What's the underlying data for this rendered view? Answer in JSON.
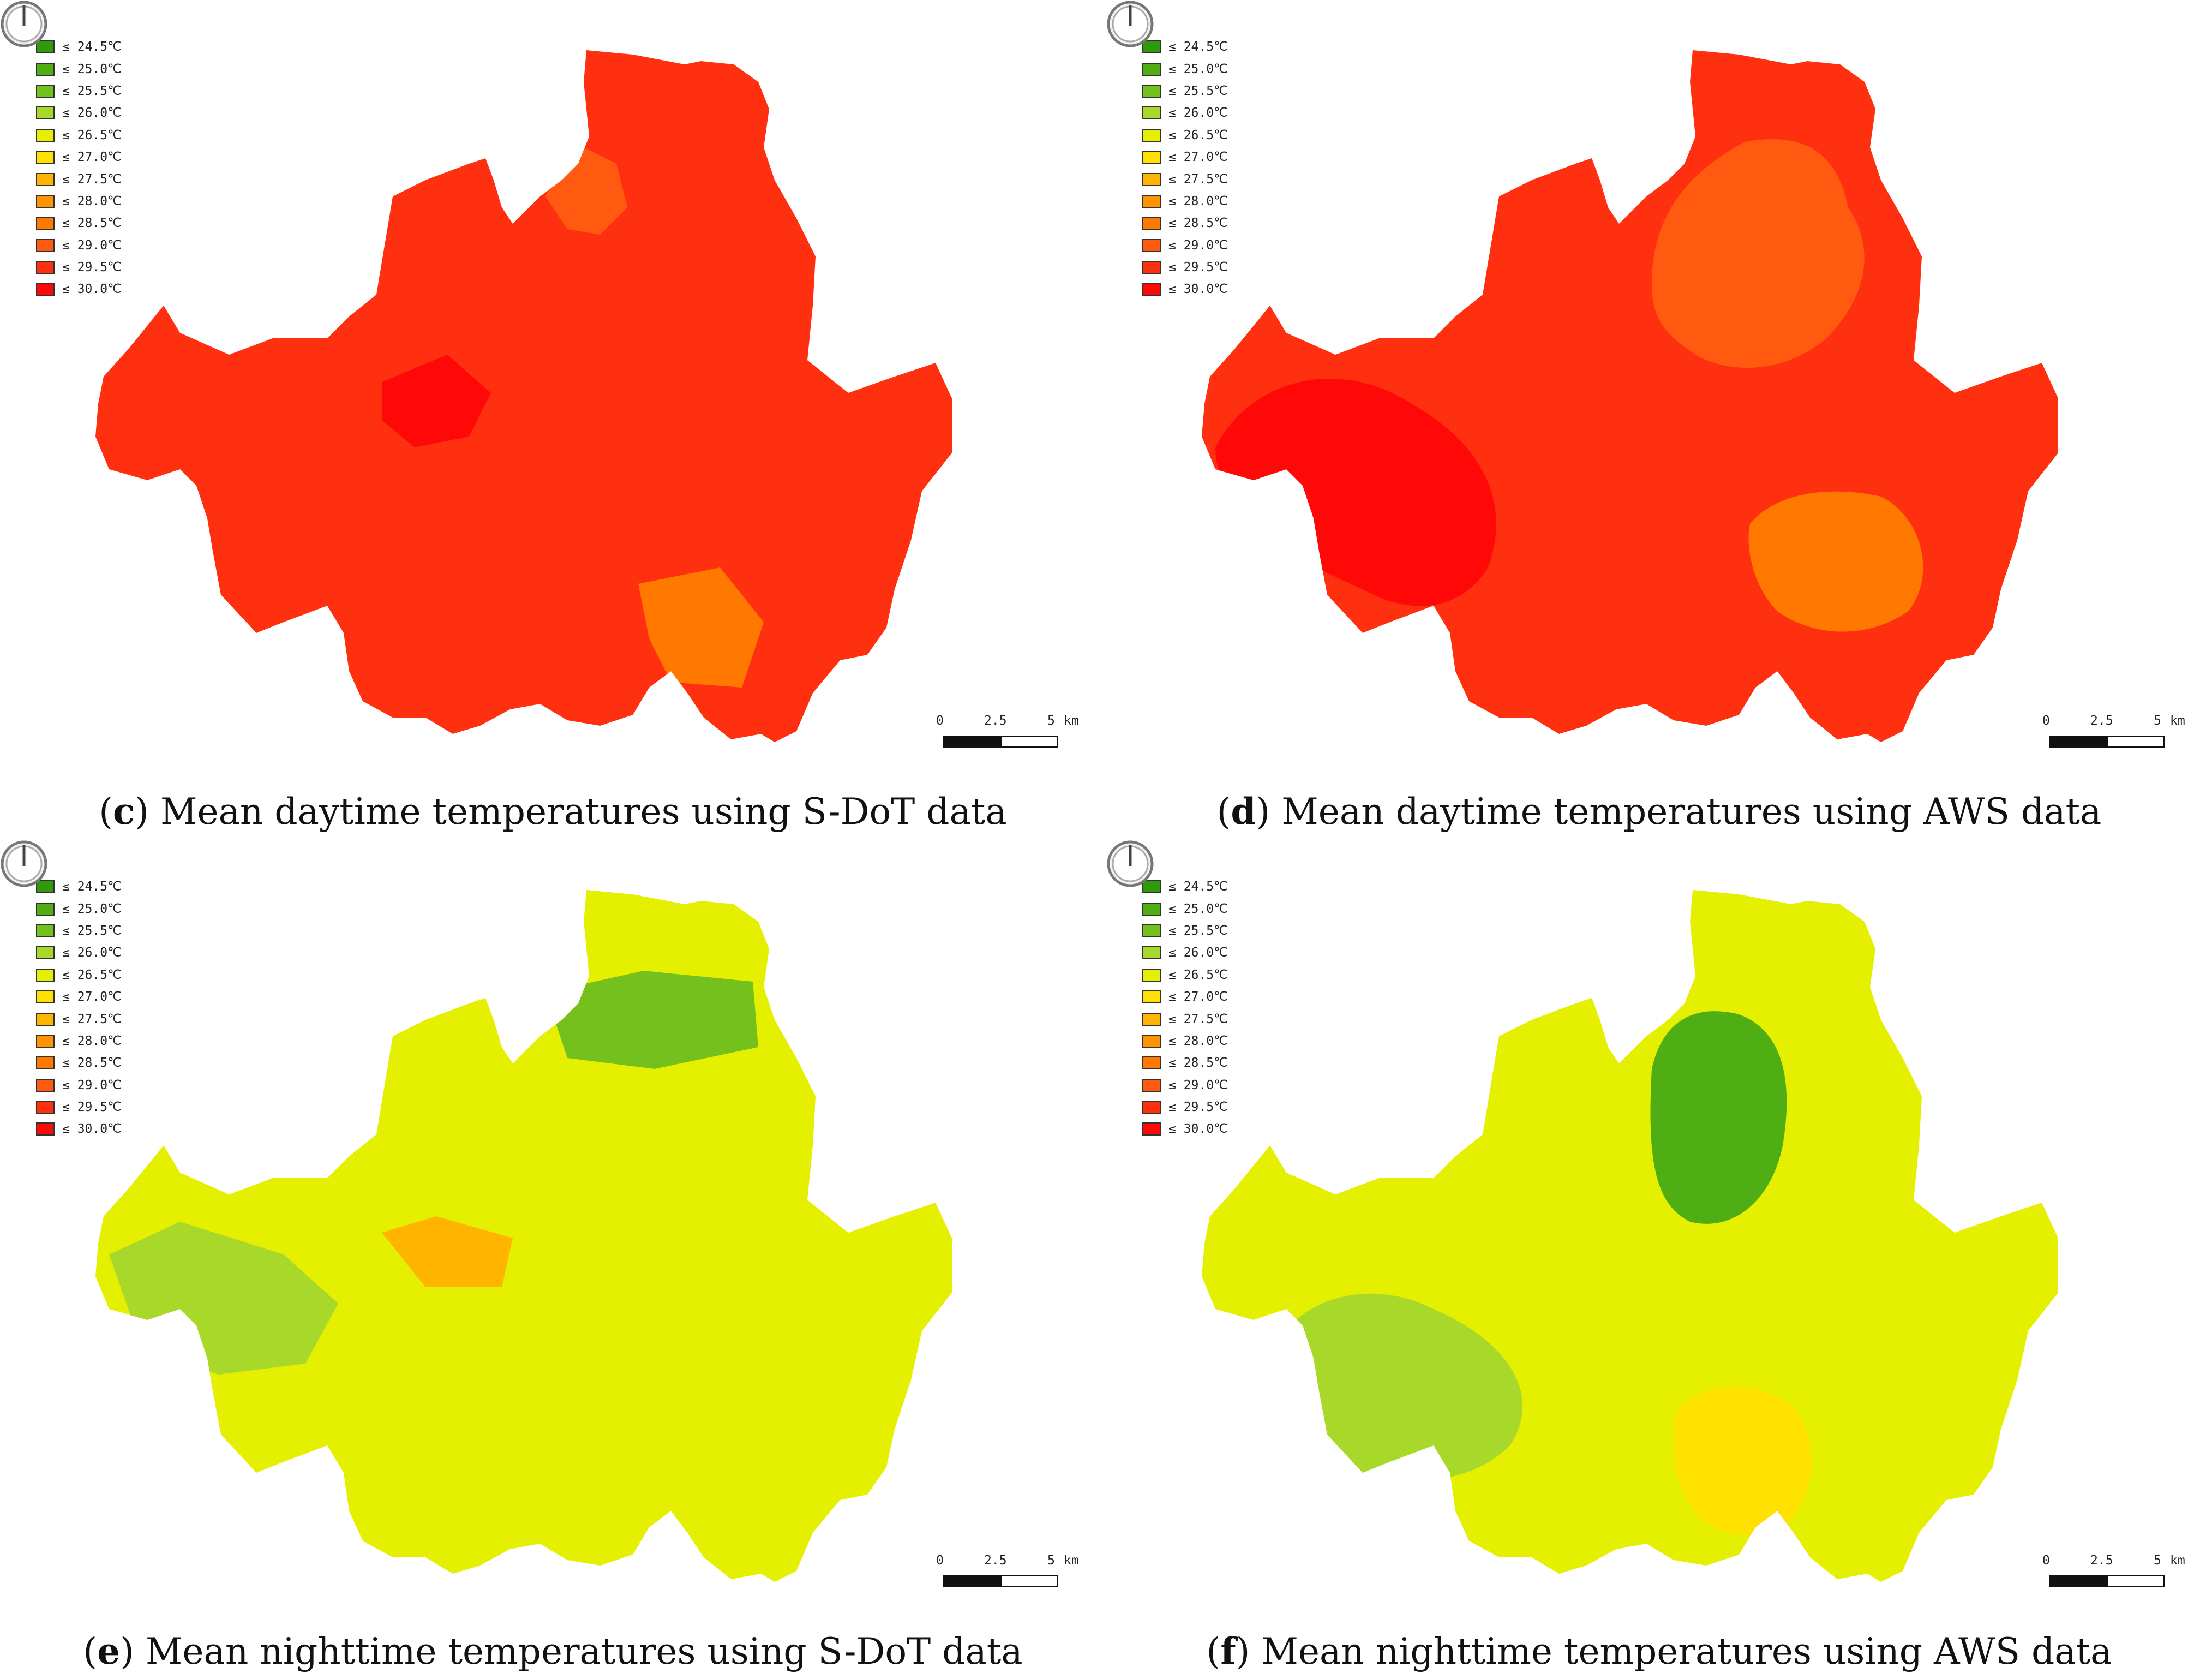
{
  "legend": {
    "items": [
      {
        "label": "≤ 24.5℃",
        "color": "#2e9a0c"
      },
      {
        "label": "≤ 25.0℃",
        "color": "#4eae14"
      },
      {
        "label": "≤ 25.5℃",
        "color": "#74c11e"
      },
      {
        "label": "≤ 26.0℃",
        "color": "#a8d82a"
      },
      {
        "label": "≤ 26.5℃",
        "color": "#e4f000"
      },
      {
        "label": "≤ 27.0℃",
        "color": "#ffe100"
      },
      {
        "label": "≤ 27.5℃",
        "color": "#ffb400"
      },
      {
        "label": "≤ 28.0℃",
        "color": "#ff9400"
      },
      {
        "label": "≤ 28.5℃",
        "color": "#ff7800"
      },
      {
        "label": "≤ 29.0℃",
        "color": "#ff5a10"
      },
      {
        "label": "≤ 29.5℃",
        "color": "#ff3010"
      },
      {
        "label": "≤ 30.0℃",
        "color": "#ff0808"
      }
    ]
  },
  "scale_bar": {
    "tick_0": "0",
    "tick_mid": "2.5",
    "tick_end": "5",
    "unit": "km"
  },
  "icons": {
    "north_arrow": "north-arrow-icon"
  },
  "panels": [
    {
      "letter": "c",
      "caption": " Mean daytime temperatures using S-DoT data",
      "base_class": "≤ 29.5℃",
      "zone_classes": [
        "≤ 29.0℃",
        "≤ 30.0℃",
        "≤ 28.5℃"
      ]
    },
    {
      "letter": "d",
      "caption": " Mean daytime temperatures using AWS data",
      "base_class": "≤ 29.5℃",
      "zone_classes": [
        "≤ 29.0℃",
        "≤ 30.0℃",
        "≤ 28.5℃"
      ]
    },
    {
      "letter": "e",
      "caption": " Mean nighttime temperatures using S-DoT data",
      "base_class": "≤ 26.5℃",
      "zone_classes": [
        "≤ 26.0℃",
        "≤ 25.5℃",
        "≤ 27.5℃"
      ]
    },
    {
      "letter": "f",
      "caption": " Mean nighttime temperatures using AWS data",
      "base_class": "≤ 26.5℃",
      "zone_classes": [
        "≤ 26.0℃",
        "≤ 25.0℃",
        "≤ 27.0℃"
      ]
    }
  ]
}
